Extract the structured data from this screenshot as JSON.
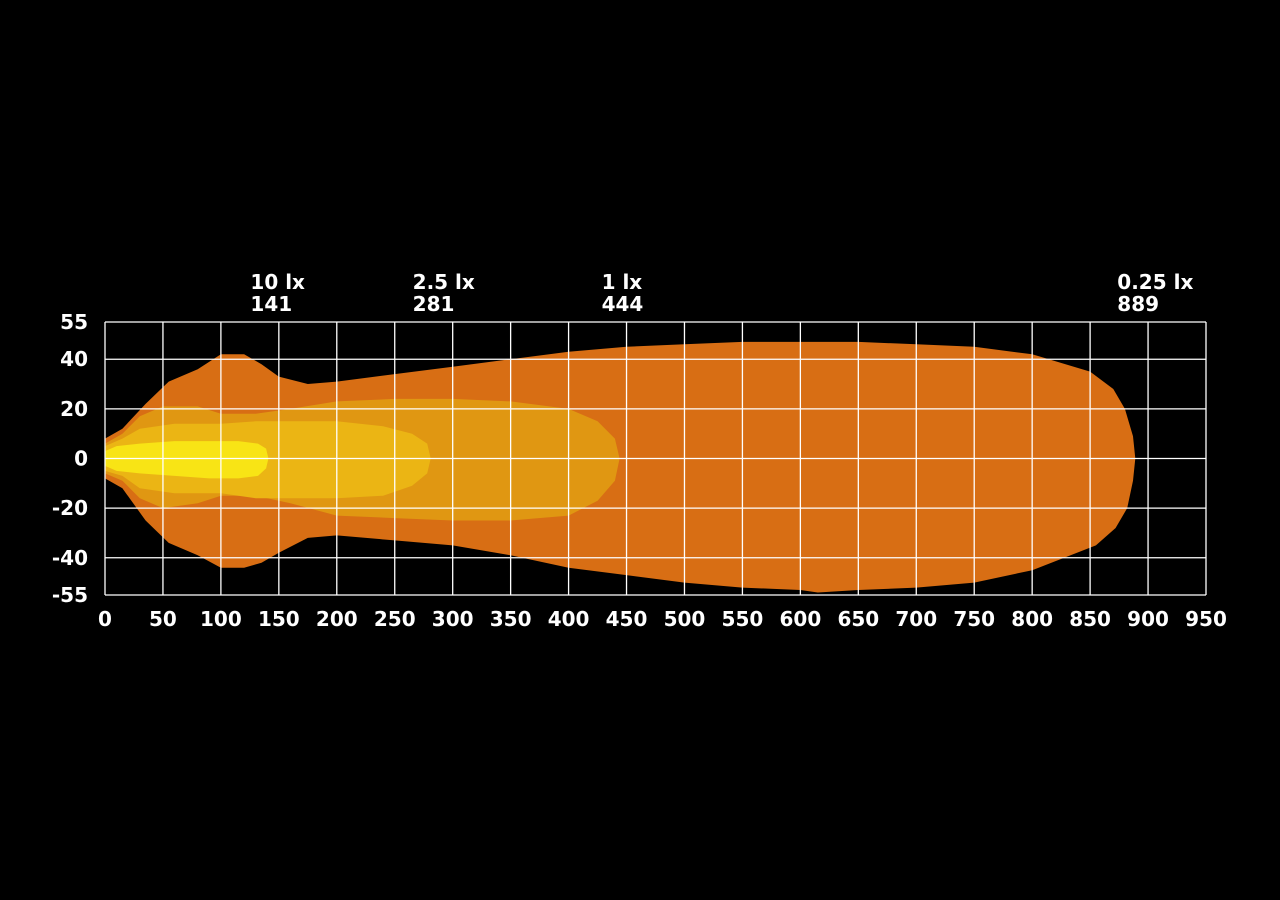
{
  "chart_data": {
    "type": "area",
    "description_units": {
      "x": "m",
      "y": "m"
    },
    "xlim": [
      0,
      950
    ],
    "ylim": [
      -55,
      55
    ],
    "grid": true,
    "background": "#000000",
    "grid_color": "#ffffff",
    "x_ticks": [
      "0",
      "50",
      "100",
      "150",
      "200",
      "250",
      "300",
      "350",
      "400",
      "450",
      "500",
      "550",
      "600",
      "650",
      "700",
      "750",
      "800",
      "850",
      "900",
      "950"
    ],
    "x_tick_values": [
      0,
      50,
      100,
      150,
      200,
      250,
      300,
      350,
      400,
      450,
      500,
      550,
      600,
      650,
      700,
      750,
      800,
      850,
      900,
      950
    ],
    "y_ticks": [
      "55",
      "40",
      "20",
      "0",
      "-20",
      "-40",
      "-55"
    ],
    "y_tick_values": [
      55,
      40,
      20,
      0,
      -20,
      -40,
      -55
    ],
    "annotations": [
      {
        "illuminance": "10 lx",
        "distance": "141",
        "x": 141
      },
      {
        "illuminance": "2.5 lx",
        "distance": "281",
        "x": 281
      },
      {
        "illuminance": "1 lx",
        "distance": "444",
        "x": 444
      },
      {
        "illuminance": "0.25 lx",
        "distance": "889",
        "x": 889
      }
    ],
    "series": [
      {
        "level": "0.25 lx",
        "color": "#d86e14",
        "points": [
          [
            0,
            8
          ],
          [
            15,
            12
          ],
          [
            35,
            22
          ],
          [
            55,
            31
          ],
          [
            80,
            36
          ],
          [
            100,
            42
          ],
          [
            120,
            42
          ],
          [
            135,
            38
          ],
          [
            150,
            33
          ],
          [
            175,
            30
          ],
          [
            200,
            31
          ],
          [
            250,
            34
          ],
          [
            300,
            37
          ],
          [
            350,
            40
          ],
          [
            400,
            43
          ],
          [
            450,
            45
          ],
          [
            500,
            46
          ],
          [
            550,
            47
          ],
          [
            600,
            47
          ],
          [
            650,
            47
          ],
          [
            700,
            46
          ],
          [
            750,
            45
          ],
          [
            800,
            42
          ],
          [
            850,
            35
          ],
          [
            870,
            28
          ],
          [
            880,
            20
          ],
          [
            887,
            9
          ],
          [
            889,
            0
          ],
          [
            887,
            -9
          ],
          [
            882,
            -20
          ],
          [
            872,
            -28
          ],
          [
            855,
            -35
          ],
          [
            800,
            -45
          ],
          [
            750,
            -50
          ],
          [
            700,
            -52
          ],
          [
            650,
            -53
          ],
          [
            615,
            -54
          ],
          [
            600,
            -53
          ],
          [
            550,
            -52
          ],
          [
            500,
            -50
          ],
          [
            450,
            -47
          ],
          [
            400,
            -44
          ],
          [
            350,
            -39
          ],
          [
            300,
            -35
          ],
          [
            250,
            -33
          ],
          [
            200,
            -31
          ],
          [
            175,
            -32
          ],
          [
            150,
            -38
          ],
          [
            135,
            -42
          ],
          [
            120,
            -44
          ],
          [
            100,
            -44
          ],
          [
            80,
            -39
          ],
          [
            55,
            -34
          ],
          [
            35,
            -25
          ],
          [
            15,
            -12
          ],
          [
            0,
            -8
          ]
        ]
      },
      {
        "level": "1 lx",
        "color": "#e09712",
        "points": [
          [
            0,
            6
          ],
          [
            15,
            10
          ],
          [
            30,
            17
          ],
          [
            50,
            21
          ],
          [
            80,
            21
          ],
          [
            100,
            18
          ],
          [
            130,
            18
          ],
          [
            160,
            20
          ],
          [
            200,
            23
          ],
          [
            250,
            24
          ],
          [
            300,
            24
          ],
          [
            350,
            23
          ],
          [
            400,
            20
          ],
          [
            425,
            15
          ],
          [
            440,
            8
          ],
          [
            444,
            0
          ],
          [
            440,
            -9
          ],
          [
            425,
            -17
          ],
          [
            400,
            -23
          ],
          [
            350,
            -25
          ],
          [
            300,
            -25
          ],
          [
            250,
            -24
          ],
          [
            200,
            -23
          ],
          [
            160,
            -18
          ],
          [
            130,
            -15
          ],
          [
            100,
            -15
          ],
          [
            80,
            -18
          ],
          [
            50,
            -20
          ],
          [
            30,
            -16
          ],
          [
            15,
            -9
          ],
          [
            0,
            -6
          ]
        ]
      },
      {
        "level": "2.5 lx",
        "color": "#ebb514",
        "points": [
          [
            0,
            5
          ],
          [
            15,
            8
          ],
          [
            30,
            12
          ],
          [
            60,
            14
          ],
          [
            100,
            14
          ],
          [
            130,
            15
          ],
          [
            160,
            15
          ],
          [
            200,
            15
          ],
          [
            240,
            13
          ],
          [
            265,
            10
          ],
          [
            278,
            6
          ],
          [
            281,
            0
          ],
          [
            278,
            -6
          ],
          [
            265,
            -11
          ],
          [
            240,
            -15
          ],
          [
            200,
            -16
          ],
          [
            160,
            -16
          ],
          [
            130,
            -16
          ],
          [
            100,
            -14
          ],
          [
            60,
            -14
          ],
          [
            30,
            -12
          ],
          [
            15,
            -7
          ],
          [
            0,
            -5
          ]
        ]
      },
      {
        "level": "10 lx",
        "color": "#f8e415",
        "points": [
          [
            0,
            3
          ],
          [
            10,
            5
          ],
          [
            30,
            6
          ],
          [
            60,
            7
          ],
          [
            90,
            7
          ],
          [
            115,
            7
          ],
          [
            132,
            6
          ],
          [
            139,
            4
          ],
          [
            141,
            0
          ],
          [
            139,
            -4
          ],
          [
            132,
            -7
          ],
          [
            115,
            -8
          ],
          [
            90,
            -8
          ],
          [
            60,
            -7
          ],
          [
            30,
            -6
          ],
          [
            10,
            -5
          ],
          [
            0,
            -3
          ]
        ]
      }
    ]
  }
}
